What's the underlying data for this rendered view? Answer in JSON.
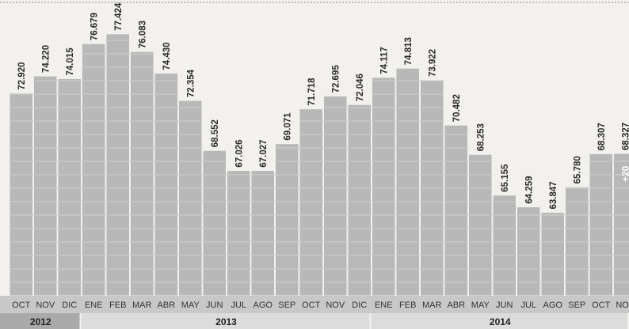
{
  "chart_data": {
    "type": "bar",
    "categories": [
      "OCT",
      "NOV",
      "DIC",
      "ENE",
      "FEB",
      "MAR",
      "ABR",
      "MAY",
      "JUN",
      "JUL",
      "AGO",
      "SEP",
      "OCT",
      "NOV",
      "DIC",
      "ENE",
      "FEB",
      "MAR",
      "ABR",
      "MAY",
      "JUN",
      "JUL",
      "AGO",
      "SEP",
      "OCT",
      "NOV"
    ],
    "values": [
      72.92,
      74.22,
      74.015,
      76.679,
      77.424,
      76.083,
      74.43,
      72.354,
      68.552,
      67.026,
      67.027,
      69.071,
      71.718,
      72.695,
      72.046,
      74.117,
      74.813,
      73.922,
      70.482,
      68.253,
      65.155,
      64.259,
      63.847,
      65.78,
      68.307,
      68.327
    ],
    "value_labels": [
      "72.920",
      "74.220",
      "74.015",
      "76.679",
      "77.424",
      "76.083",
      "74.430",
      "72.354",
      "68.552",
      "67.026",
      "67.027",
      "69.071",
      "71.718",
      "72.695",
      "72.046",
      "74.117",
      "74.813",
      "73.922",
      "70.482",
      "68.253",
      "65.155",
      "64.259",
      "63.847",
      "65.780",
      "68.307",
      "68.327"
    ],
    "highlight": {
      "index": 25,
      "label": "+20"
    },
    "years": [
      {
        "label": "2012",
        "start": 0,
        "end": 2
      },
      {
        "label": "2013",
        "start": 3,
        "end": 14
      },
      {
        "label": "2014",
        "start": 15,
        "end": 25
      }
    ],
    "ylim": [
      57.5,
      80
    ],
    "title": "",
    "xlabel": "",
    "ylabel": "",
    "grid": true,
    "colors": {
      "bar": "#b8b8b8",
      "bar_grid": "#d0d0d0",
      "label": "#2a2a2a",
      "month_band": "#c8c8c8",
      "year_band": "#dcdcdc",
      "year_band_dark": "#a9a9a9",
      "highlight_text": "#ffffff"
    }
  }
}
